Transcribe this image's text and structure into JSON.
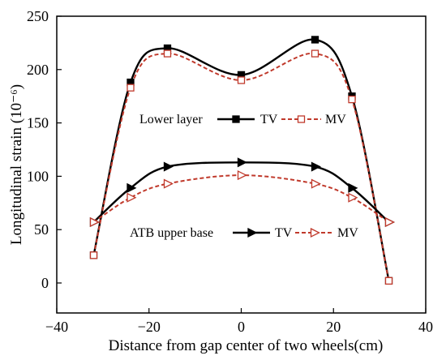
{
  "chart_data": {
    "type": "line",
    "title": "",
    "xlabel": "Distance from gap center of two wheels(cm)",
    "ylabel": "Longitudinal strain (10⁻⁶)",
    "xlim": [
      -40,
      40
    ],
    "ylim": [
      0,
      250
    ],
    "xticks": [
      -40,
      -20,
      0,
      20,
      40
    ],
    "yticks": [
      0,
      50,
      100,
      150,
      200,
      250
    ],
    "grid": false,
    "legend": {
      "groups": [
        {
          "label": "Lower layer",
          "series": [
            "Lower layer TV",
            "Lower layer MV"
          ],
          "tv_label": "TV",
          "mv_label": "MV"
        },
        {
          "label": "ATB upper base",
          "series": [
            "ATB upper base TV",
            "ATB upper base MV"
          ],
          "tv_label": "TV",
          "mv_label": "MV"
        }
      ]
    },
    "series": [
      {
        "name": "Lower layer TV",
        "marker": "filled-square",
        "line": "solid",
        "color": "#000000",
        "x": [
          -32,
          -24,
          -16,
          0,
          16,
          24,
          32
        ],
        "y": [
          26,
          188,
          220,
          195,
          228,
          175,
          2
        ]
      },
      {
        "name": "Lower layer MV",
        "marker": "open-square",
        "line": "dashed",
        "color": "#c0392b",
        "x": [
          -32,
          -24,
          -16,
          0,
          16,
          24,
          32
        ],
        "y": [
          26,
          183,
          215,
          190,
          215,
          172,
          2
        ]
      },
      {
        "name": "ATB upper base TV",
        "marker": "filled-triangle-right",
        "line": "solid",
        "color": "#000000",
        "x": [
          -32,
          -24,
          -16,
          0,
          16,
          24,
          32
        ],
        "y": [
          57,
          89,
          109,
          113,
          109,
          89,
          57
        ]
      },
      {
        "name": "ATB upper base MV",
        "marker": "open-triangle-right",
        "line": "dashed",
        "color": "#c0392b",
        "x": [
          -32,
          -24,
          -16,
          0,
          16,
          24,
          32
        ],
        "y": [
          57,
          80,
          93,
          101,
          93,
          80,
          57
        ]
      }
    ]
  }
}
